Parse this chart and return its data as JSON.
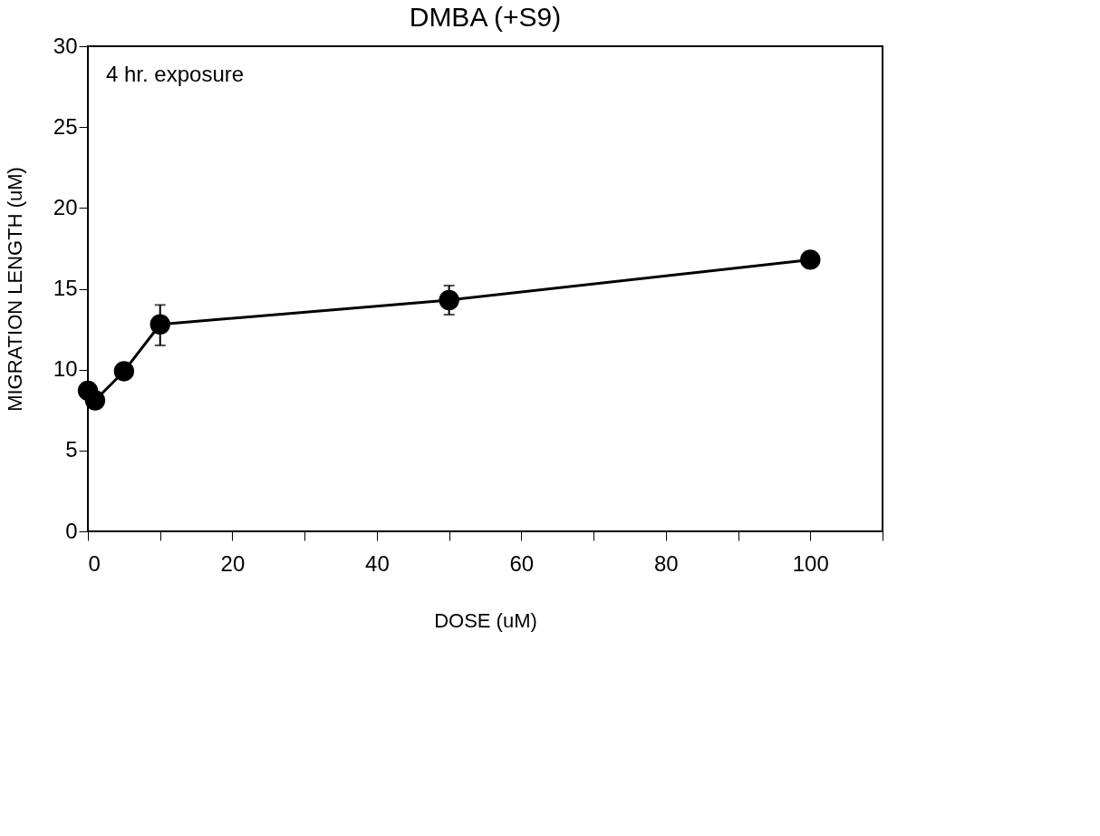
{
  "chart_data": {
    "type": "line",
    "title": "DMBA (+S9)",
    "xlabel": "DOSE (uM)",
    "ylabel": "MIGRATION LENGTH (uM)",
    "annotations": [
      "4 hr. exposure"
    ],
    "x": [
      0,
      1,
      5,
      10,
      50,
      100
    ],
    "series": [
      {
        "color": "#000000",
        "values": [
          8.7,
          8.1,
          9.9,
          12.8,
          14.3,
          16.8
        ],
        "errors": [
          null,
          null,
          null,
          [
            11.5,
            14.0
          ],
          [
            13.4,
            15.2
          ],
          null
        ]
      }
    ],
    "xlim": [
      0,
      110
    ],
    "ylim": [
      0,
      30
    ],
    "xticks": [
      0,
      {
        "value": 10,
        "label": null
      },
      20,
      {
        "value": 30,
        "label": null
      },
      40,
      {
        "value": 50,
        "label": null
      },
      60,
      {
        "value": 70,
        "label": null
      },
      80,
      {
        "value": 90,
        "label": null
      },
      100,
      {
        "value": 110,
        "label": null
      }
    ],
    "yticks": [
      0,
      5,
      10,
      15,
      20,
      25,
      30
    ],
    "marker": "circle",
    "line_style": "solid",
    "grid": false
  }
}
